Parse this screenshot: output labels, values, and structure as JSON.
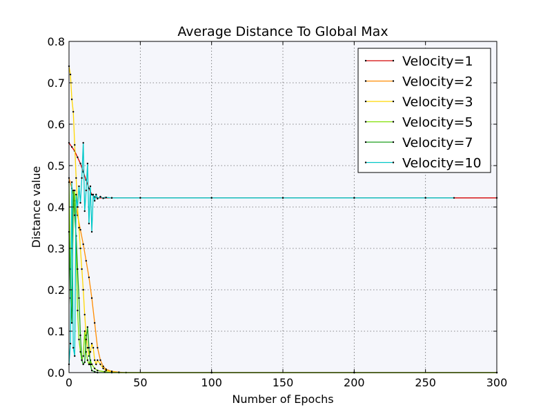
{
  "chart_data": {
    "type": "line",
    "title": "Average Distance To Global Max",
    "xlabel": "Number of Epochs",
    "ylabel": "Distance value",
    "xlim": [
      0,
      300
    ],
    "ylim": [
      0,
      0.8
    ],
    "xticks": [
      "0",
      "50",
      "100",
      "150",
      "200",
      "250",
      "300"
    ],
    "yticks": [
      "0.0",
      "0.1",
      "0.2",
      "0.3",
      "0.4",
      "0.5",
      "0.6",
      "0.7",
      "0.8"
    ],
    "grid": true,
    "legend_position": "top-right",
    "plot_background": "#f5f6fb",
    "series": [
      {
        "name": "Velocity=1",
        "color": "#d40000",
        "points": [
          [
            0,
            0.555
          ],
          [
            2,
            0.545
          ],
          [
            4,
            0.535
          ],
          [
            6,
            0.52
          ],
          [
            8,
            0.505
          ],
          [
            10,
            0.485
          ],
          [
            12,
            0.465
          ],
          [
            14,
            0.445
          ],
          [
            16,
            0.43
          ],
          [
            18,
            0.424
          ],
          [
            20,
            0.422
          ],
          [
            25,
            0.422
          ],
          [
            30,
            0.422
          ],
          [
            50,
            0.422
          ],
          [
            100,
            0.422
          ],
          [
            150,
            0.422
          ],
          [
            200,
            0.422
          ],
          [
            250,
            0.422
          ],
          [
            300,
            0.422
          ]
        ]
      },
      {
        "name": "Velocity=2",
        "color": "#ff8c00",
        "points": [
          [
            0,
            0.47
          ],
          [
            2,
            0.445
          ],
          [
            4,
            0.415
          ],
          [
            6,
            0.38
          ],
          [
            8,
            0.345
          ],
          [
            10,
            0.31
          ],
          [
            12,
            0.27
          ],
          [
            14,
            0.23
          ],
          [
            16,
            0.18
          ],
          [
            18,
            0.12
          ],
          [
            20,
            0.06
          ],
          [
            22,
            0.03
          ],
          [
            24,
            0.015
          ],
          [
            26,
            0.008
          ],
          [
            30,
            0.003
          ],
          [
            35,
            0.001
          ],
          [
            40,
            0.0
          ],
          [
            100,
            0.0
          ],
          [
            200,
            0.0
          ],
          [
            300,
            0.0
          ]
        ]
      },
      {
        "name": "Velocity=3",
        "color": "#ffd700",
        "points": [
          [
            0,
            0.74
          ],
          [
            1,
            0.72
          ],
          [
            2,
            0.66
          ],
          [
            3,
            0.63
          ],
          [
            4,
            0.55
          ],
          [
            5,
            0.47
          ],
          [
            6,
            0.4
          ],
          [
            7,
            0.35
          ],
          [
            8,
            0.3
          ],
          [
            9,
            0.25
          ],
          [
            10,
            0.2
          ],
          [
            11,
            0.14
          ],
          [
            12,
            0.09
          ],
          [
            13,
            0.06
          ],
          [
            14,
            0.04
          ],
          [
            15,
            0.05
          ],
          [
            16,
            0.07
          ],
          [
            17,
            0.06
          ],
          [
            18,
            0.03
          ],
          [
            19,
            0.02
          ],
          [
            20,
            0.03
          ],
          [
            22,
            0.02
          ],
          [
            24,
            0.01
          ],
          [
            26,
            0.005
          ],
          [
            30,
            0.002
          ],
          [
            35,
            0.0
          ],
          [
            100,
            0.0
          ],
          [
            200,
            0.0
          ],
          [
            300,
            0.0
          ]
        ]
      },
      {
        "name": "Velocity=5",
        "color": "#7fdf00",
        "points": [
          [
            0,
            0.46
          ],
          [
            1,
            0.25
          ],
          [
            2,
            0.15
          ],
          [
            3,
            0.4
          ],
          [
            4,
            0.44
          ],
          [
            5,
            0.3
          ],
          [
            6,
            0.15
          ],
          [
            7,
            0.08
          ],
          [
            8,
            0.05
          ],
          [
            9,
            0.03
          ],
          [
            10,
            0.04
          ],
          [
            11,
            0.1
          ],
          [
            12,
            0.05
          ],
          [
            13,
            0.03
          ],
          [
            14,
            0.02
          ],
          [
            15,
            0.03
          ],
          [
            16,
            0.02
          ],
          [
            18,
            0.01
          ],
          [
            20,
            0.005
          ],
          [
            25,
            0.002
          ],
          [
            30,
            0.0
          ],
          [
            100,
            0.0
          ],
          [
            200,
            0.0
          ],
          [
            300,
            0.0
          ]
        ]
      },
      {
        "name": "Velocity=7",
        "color": "#1a9e1a",
        "points": [
          [
            0,
            0.34
          ],
          [
            1,
            0.18
          ],
          [
            2,
            0.12
          ],
          [
            3,
            0.44
          ],
          [
            4,
            0.38
          ],
          [
            5,
            0.33
          ],
          [
            6,
            0.25
          ],
          [
            7,
            0.18
          ],
          [
            8,
            0.09
          ],
          [
            9,
            0.03
          ],
          [
            10,
            0.02
          ],
          [
            11,
            0.025
          ],
          [
            12,
            0.08
          ],
          [
            13,
            0.11
          ],
          [
            14,
            0.06
          ],
          [
            15,
            0.02
          ],
          [
            16,
            0.005
          ],
          [
            18,
            0.002
          ],
          [
            20,
            0.0
          ],
          [
            100,
            0.0
          ],
          [
            200,
            0.0
          ],
          [
            300,
            0.0
          ]
        ]
      },
      {
        "name": "Velocity=10",
        "color": "#00c8c8",
        "points": [
          [
            0,
            0.02
          ],
          [
            1,
            0.07
          ],
          [
            2,
            0.46
          ],
          [
            3,
            0.06
          ],
          [
            4,
            0.04
          ],
          [
            5,
            0.43
          ],
          [
            6,
            0.4
          ],
          [
            7,
            0.45
          ],
          [
            8,
            0.41
          ],
          [
            9,
            0.47
          ],
          [
            10,
            0.555
          ],
          [
            11,
            0.39
          ],
          [
            12,
            0.44
          ],
          [
            13,
            0.505
          ],
          [
            14,
            0.36
          ],
          [
            15,
            0.45
          ],
          [
            16,
            0.34
          ],
          [
            17,
            0.43
          ],
          [
            18,
            0.415
          ],
          [
            19,
            0.43
          ],
          [
            20,
            0.42
          ],
          [
            22,
            0.425
          ],
          [
            24,
            0.421
          ],
          [
            26,
            0.423
          ],
          [
            30,
            0.422
          ],
          [
            50,
            0.422
          ],
          [
            100,
            0.422
          ],
          [
            150,
            0.422
          ],
          [
            200,
            0.422
          ],
          [
            250,
            0.422
          ],
          [
            270,
            0.422
          ]
        ]
      }
    ]
  }
}
